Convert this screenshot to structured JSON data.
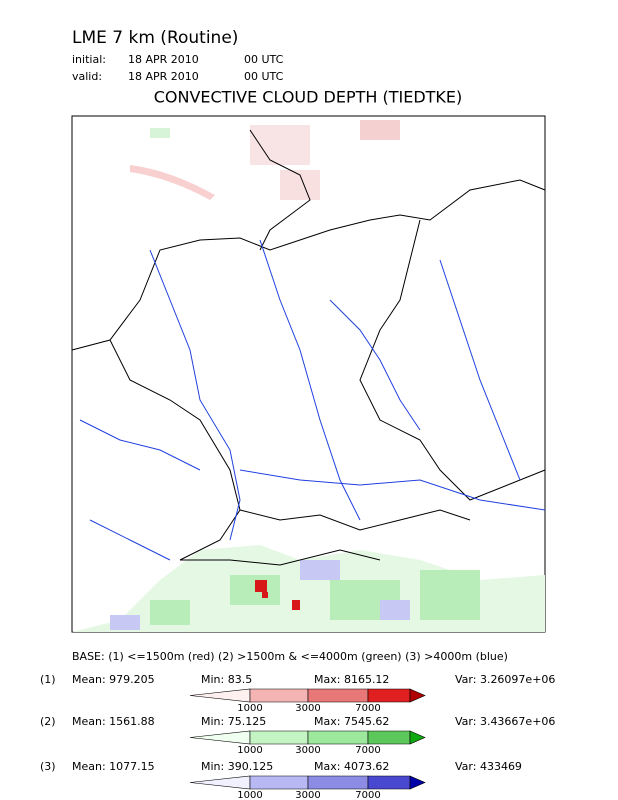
{
  "header": {
    "model": "LME 7 km (Routine)",
    "initial": {
      "label": "initial:",
      "date": "18 APR 2010",
      "time": "00 UTC"
    },
    "valid": {
      "label": "valid:",
      "date": "18 APR 2010",
      "time": "00 UTC"
    }
  },
  "title": "CONVECTIVE CLOUD DEPTH (TIEDTKE)",
  "legend": {
    "base": "BASE: (1) <=1500m (red)   (2) >1500m & <=4000m (green)   (3) >4000m (blue)",
    "rows": [
      {
        "index": "(1)",
        "mean": "Mean: 979.205",
        "min": "Min: 83.5",
        "max": "Max: 8165.12",
        "var": "Var: 3.26097e+06",
        "colors": [
          "#fff0f0",
          "#f4b4b4",
          "#e87878",
          "#e02020",
          "#b00000"
        ],
        "ticks": [
          "1000",
          "3000",
          "7000"
        ]
      },
      {
        "index": "(2)",
        "mean": "Mean: 1561.88",
        "min": "Min: 75.125",
        "max": "Max: 7545.62",
        "var": "Var: 3.43667e+06",
        "colors": [
          "#effff0",
          "#c4f4c4",
          "#9ce89c",
          "#5cc85c",
          "#10a810"
        ],
        "ticks": [
          "1000",
          "3000",
          "7000"
        ]
      },
      {
        "index": "(3)",
        "mean": "Mean: 1077.15",
        "min": "Min: 390.125",
        "max": "Max: 4073.62",
        "var": "Var: 433469",
        "colors": [
          "#f0f0ff",
          "#b8b8f4",
          "#8c8ce4",
          "#4848d0",
          "#0000a8"
        ],
        "ticks": [
          "1000",
          "3000",
          "7000"
        ]
      }
    ]
  }
}
